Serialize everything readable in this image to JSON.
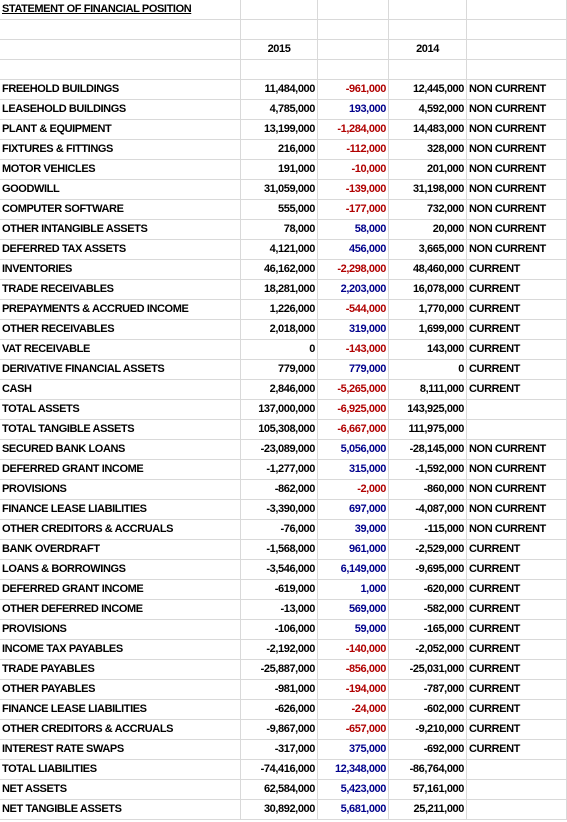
{
  "title": "STATEMENT OF FINANCIAL POSITION",
  "header": [
    "2015",
    "2014"
  ],
  "rows": [
    [
      "FREEHOLD BUILDINGS",
      "11,484,000",
      "-961,000",
      "12,445,000",
      "NON CURRENT"
    ],
    [
      "LEASEHOLD BUILDINGS",
      "4,785,000",
      "193,000",
      "4,592,000",
      "NON CURRENT"
    ],
    [
      "PLANT & EQUIPMENT",
      "13,199,000",
      "-1,284,000",
      "14,483,000",
      "NON CURRENT"
    ],
    [
      "FIXTURES & FITTINGS",
      "216,000",
      "-112,000",
      "328,000",
      "NON CURRENT"
    ],
    [
      "MOTOR VEHICLES",
      "191,000",
      "-10,000",
      "201,000",
      "NON CURRENT"
    ],
    [
      "GOODWILL",
      "31,059,000",
      "-139,000",
      "31,198,000",
      "NON CURRENT"
    ],
    [
      "COMPUTER SOFTWARE",
      "555,000",
      "-177,000",
      "732,000",
      "NON CURRENT"
    ],
    [
      "OTHER INTANGIBLE ASSETS",
      "78,000",
      "58,000",
      "20,000",
      "NON CURRENT"
    ],
    [
      "DEFERRED TAX ASSETS",
      "4,121,000",
      "456,000",
      "3,665,000",
      "NON CURRENT"
    ],
    [
      "INVENTORIES",
      "46,162,000",
      "-2,298,000",
      "48,460,000",
      "CURRENT"
    ],
    [
      "TRADE RECEIVABLES",
      "18,281,000",
      "2,203,000",
      "16,078,000",
      "CURRENT"
    ],
    [
      "PREPAYMENTS & ACCRUED INCOME",
      "1,226,000",
      "-544,000",
      "1,770,000",
      "CURRENT"
    ],
    [
      "OTHER RECEIVABLES",
      "2,018,000",
      "319,000",
      "1,699,000",
      "CURRENT"
    ],
    [
      "VAT RECEIVABLE",
      "0",
      "-143,000",
      "143,000",
      "CURRENT"
    ],
    [
      "DERIVATIVE FINANCIAL ASSETS",
      "779,000",
      "779,000",
      "0",
      "CURRENT"
    ],
    [
      "CASH",
      "2,846,000",
      "-5,265,000",
      "8,111,000",
      "CURRENT"
    ],
    [
      "TOTAL ASSETS",
      "137,000,000",
      "-6,925,000",
      "143,925,000"
    ],
    [
      "TOTAL TANGIBLE ASSETS",
      "105,308,000",
      "-6,667,000",
      "111,975,000"
    ],
    [
      "SECURED BANK LOANS",
      "-23,089,000",
      "5,056,000",
      "-28,145,000",
      "NON CURRENT"
    ],
    [
      "DEFERRED GRANT INCOME",
      "-1,277,000",
      "315,000",
      "-1,592,000",
      "NON CURRENT"
    ],
    [
      "PROVISIONS",
      "-862,000",
      "-2,000",
      "-860,000",
      "NON CURRENT"
    ],
    [
      "FINANCE LEASE LIABILITIES",
      "-3,390,000",
      "697,000",
      "-4,087,000",
      "NON CURRENT"
    ],
    [
      "OTHER CREDITORS & ACCRUALS",
      "-76,000",
      "39,000",
      "-115,000",
      "NON CURRENT"
    ],
    [
      "BANK OVERDRAFT",
      "-1,568,000",
      "961,000",
      "-2,529,000",
      "CURRENT"
    ],
    [
      "LOANS & BORROWINGS",
      "-3,546,000",
      "6,149,000",
      "-9,695,000",
      "CURRENT"
    ],
    [
      "DEFERRED GRANT INCOME",
      "-619,000",
      "1,000",
      "-620,000",
      "CURRENT"
    ],
    [
      "OTHER DEFERRED INCOME",
      "-13,000",
      "569,000",
      "-582,000",
      "CURRENT"
    ],
    [
      "PROVISIONS",
      "-106,000",
      "59,000",
      "-165,000",
      "CURRENT"
    ],
    [
      "INCOME TAX PAYABLES",
      "-2,192,000",
      "-140,000",
      "-2,052,000",
      "CURRENT"
    ],
    [
      "TRADE PAYABLES",
      "-25,887,000",
      "-856,000",
      "-25,031,000",
      "CURRENT"
    ],
    [
      "OTHER PAYABLES",
      "-981,000",
      "-194,000",
      "-787,000",
      "CURRENT"
    ],
    [
      "FINANCE LEASE LIABILITIES",
      "-626,000",
      "-24,000",
      "-602,000",
      "CURRENT"
    ],
    [
      "OTHER CREDITORS & ACCRUALS",
      "-9,867,000",
      "-657,000",
      "-9,210,000",
      "CURRENT"
    ],
    [
      "INTEREST RATE SWAPS",
      "-317,000",
      "375,000",
      "-692,000",
      "CURRENT"
    ],
    [
      "TOTAL LIABILITIES",
      "-74,416,000",
      "12,348,000",
      "-86,764,000"
    ],
    [
      "NET ASSETS",
      "62,584,000",
      "5,423,000",
      "57,161,000"
    ],
    [
      "NET TANGIBLE ASSETS",
      "30,892,000",
      "5,681,000",
      "25,211,000"
    ]
  ]
}
